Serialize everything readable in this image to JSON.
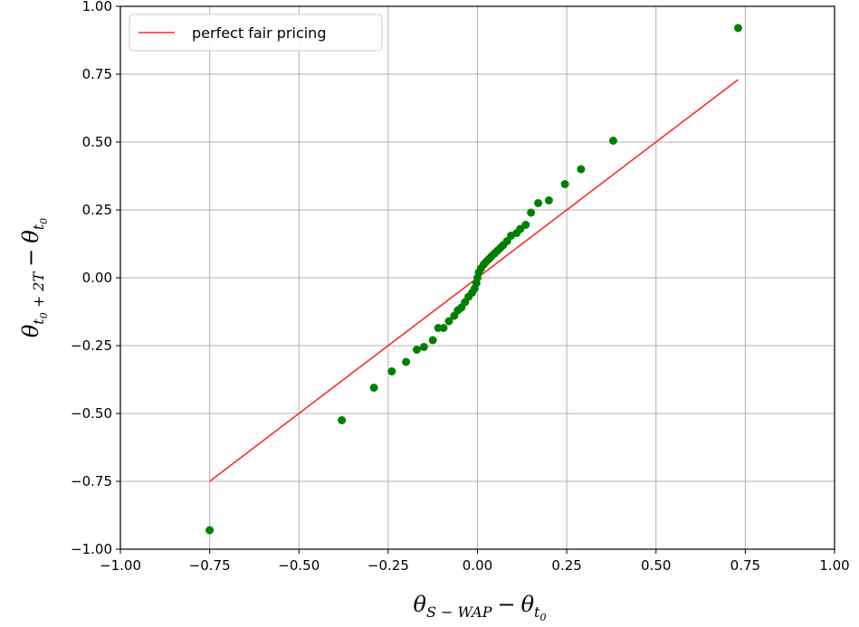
{
  "chart_data": {
    "type": "scatter",
    "title": "",
    "xlabel": {
      "base": "θ",
      "sub": "S − WAP",
      "minus": "−",
      "base2": "θ",
      "sub2": "t",
      "subsub2": "0"
    },
    "ylabel": {
      "base": "θ",
      "sub_main": "t",
      "sub_sub": "0",
      "sub_rest": " + 2T",
      "minus": "−",
      "base2": "θ",
      "sub2": "t",
      "subsub2": "0"
    },
    "xlim": [
      -1.0,
      1.0
    ],
    "ylim": [
      -1.0,
      1.0
    ],
    "xticks": [
      -1.0,
      -0.75,
      -0.5,
      -0.25,
      0.0,
      0.25,
      0.5,
      0.75,
      1.0
    ],
    "yticks": [
      -1.0,
      -0.75,
      -0.5,
      -0.25,
      0.0,
      0.25,
      0.5,
      0.75,
      1.0
    ],
    "xtick_labels": [
      "−1.00",
      "−0.75",
      "−0.50",
      "−0.25",
      "0.00",
      "0.25",
      "0.50",
      "0.75",
      "1.00"
    ],
    "ytick_labels": [
      "−1.00",
      "−0.75",
      "−0.50",
      "−0.25",
      "0.00",
      "0.25",
      "0.50",
      "0.75",
      "1.00"
    ],
    "grid": true,
    "legend_position": "top-left",
    "series": [
      {
        "kind": "line",
        "name": "perfect fair pricing",
        "color": "#ff2a2a",
        "x": [
          -0.75,
          0.73
        ],
        "y": [
          -0.75,
          0.73
        ]
      },
      {
        "kind": "scatter",
        "color": "#008000",
        "x": [
          -0.75,
          -0.38,
          -0.29,
          -0.24,
          -0.2,
          -0.17,
          -0.15,
          -0.125,
          -0.11,
          -0.095,
          -0.08,
          -0.065,
          -0.055,
          -0.045,
          -0.035,
          -0.025,
          -0.015,
          -0.008,
          -0.003,
          0.0,
          0.004,
          0.01,
          0.018,
          0.025,
          0.033,
          0.04,
          0.048,
          0.056,
          0.064,
          0.072,
          0.083,
          0.094,
          0.11,
          0.12,
          0.135,
          0.15,
          0.17,
          0.2,
          0.245,
          0.29,
          0.38,
          0.73
        ],
        "y": [
          -0.93,
          -0.525,
          -0.405,
          -0.345,
          -0.31,
          -0.265,
          -0.255,
          -0.23,
          -0.185,
          -0.185,
          -0.16,
          -0.14,
          -0.12,
          -0.11,
          -0.09,
          -0.07,
          -0.055,
          -0.04,
          -0.02,
          0.0,
          0.02,
          0.035,
          0.05,
          0.06,
          0.07,
          0.08,
          0.09,
          0.1,
          0.11,
          0.12,
          0.135,
          0.155,
          0.165,
          0.18,
          0.195,
          0.24,
          0.275,
          0.285,
          0.345,
          0.4,
          0.505,
          0.92
        ]
      }
    ]
  }
}
